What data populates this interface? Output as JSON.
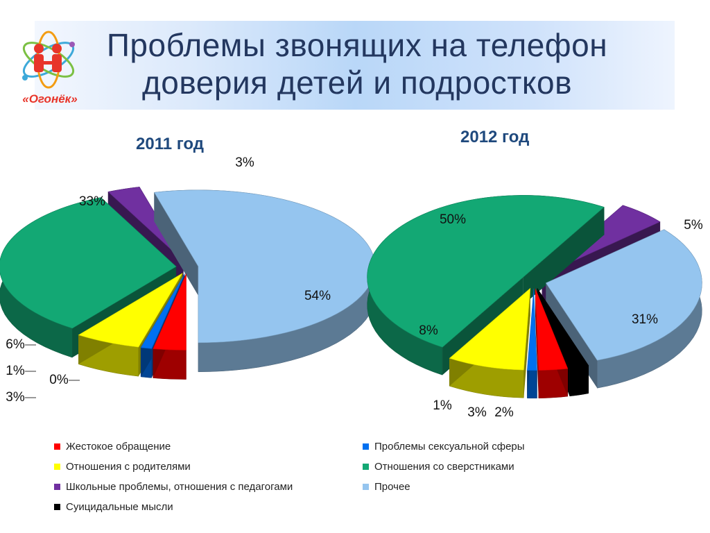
{
  "header": {
    "title": "Проблемы звонящих на телефон доверия детей и подростков",
    "title_line1": "Проблемы звонящих на телефон",
    "title_line2": "доверия детей и подростков",
    "logo_text": "«Огонёк»"
  },
  "chart_data": [
    {
      "type": "pie",
      "title": "2011 год",
      "style": "3d-exploded",
      "categories": [
        "Жестокое обращение",
        "Проблемы сексуальной сферы",
        "Отношения с родителями",
        "Отношения со сверстниками",
        "Школьные проблемы, отношения с педагогами",
        "Прочее",
        "Суицидальные мысли"
      ],
      "values": [
        3,
        1,
        6,
        33,
        3,
        54,
        0
      ],
      "labels": [
        "3%",
        "1%",
        "6%",
        "33%",
        "3%",
        "54%",
        "0%"
      ]
    },
    {
      "type": "pie",
      "title": "2012 год",
      "style": "3d-exploded",
      "categories": [
        "Жестокое обращение",
        "Проблемы сексуальной сферы",
        "Отношения с родителями",
        "Отношения со сверстниками",
        "Школьные проблемы, отношения с педагогами",
        "Прочее",
        "Суицидальные мысли"
      ],
      "values": [
        3,
        1,
        8,
        50,
        5,
        31,
        2
      ],
      "labels": [
        "3%",
        "1%",
        "8%",
        "50%",
        "5%",
        "31%",
        "2%"
      ]
    }
  ],
  "legend": {
    "placement": "bottom",
    "items": [
      {
        "label": "Жестокое обращение",
        "color": "#ff0000"
      },
      {
        "label": "Проблемы сексуальной сферы",
        "color": "#0070f0"
      },
      {
        "label": "Отношения с родителями",
        "color": "#ffff00"
      },
      {
        "label": "Отношения со сверстниками",
        "color": "#13a874"
      },
      {
        "label": "Школьные проблемы, отношения с педагогами",
        "color": "#7030a0"
      },
      {
        "label": "Прочее",
        "color": "#95c5ef"
      },
      {
        "label": "Суицидальные мысли",
        "color": "#000000"
      }
    ]
  },
  "colors": {
    "title_text": "#23375f",
    "year_text": "#1f497d"
  }
}
